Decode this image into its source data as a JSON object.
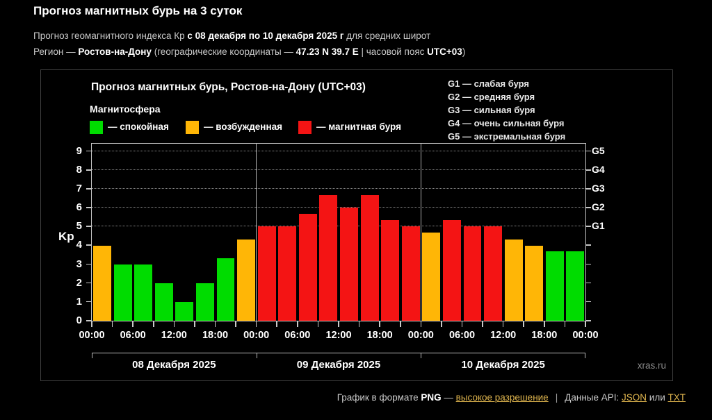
{
  "header": {
    "title": "Прогноз магнитных бурь на 3 суток",
    "line2": {
      "pre": "Прогноз геомагнитного индекса Кр ",
      "bold": "с 08 декабря по 10 декабря 2025 г",
      "post": " для средних широт"
    },
    "line3": {
      "pre": "Регион — ",
      "region": "Ростов-на-Дону",
      "mid": " (географические координаты — ",
      "coords": "47.23 N 39.7 E",
      "tz_pre": " | часовой пояс ",
      "tz": "UTC+03",
      "post": ")"
    }
  },
  "panel": {
    "chart_title": "Прогноз магнитных бурь, Ростов-на-Дону (UTC+03)",
    "legend_title": "Магнитосфера",
    "watermark": "xras.ru"
  },
  "chart_data": {
    "type": "bar",
    "title": "Прогноз магнитных бурь, Ростов-на-Дону (UTC+03)",
    "ylabel": "Kp",
    "ylim": [
      0,
      9.4
    ],
    "yticks": [
      0,
      1,
      2,
      3,
      4,
      5,
      6,
      7,
      8,
      9
    ],
    "gridlines_kp": [
      5,
      6,
      7,
      8,
      9
    ],
    "grid": "dotted",
    "legend_position": "top",
    "right_axis_labels": [
      {
        "label": "G1",
        "kp": 5
      },
      {
        "label": "G2",
        "kp": 6
      },
      {
        "label": "G3",
        "kp": 7
      },
      {
        "label": "G4",
        "kp": 8
      },
      {
        "label": "G5",
        "kp": 9
      }
    ],
    "g_scale_legend": [
      "G1 — слабая буря",
      "G2 — средняя буря",
      "G3 — сильная буря",
      "G4 — очень сильная буря",
      "G5 — экстремальная буря"
    ],
    "legend": [
      {
        "key": "quiet",
        "label": "— спокойная"
      },
      {
        "key": "excited",
        "label": "— возбужденная"
      },
      {
        "key": "storm",
        "label": "— магнитная буря"
      }
    ],
    "bar_colors": {
      "quiet": "#00dc00",
      "excited": "#ffb606",
      "storm": "#f41414"
    },
    "x_hour_labels": [
      "00:00",
      "06:00",
      "12:00",
      "18:00",
      "00:00",
      "06:00",
      "12:00",
      "18:00",
      "00:00",
      "06:00",
      "12:00",
      "18:00",
      "00:00"
    ],
    "days": [
      {
        "date": "08 Декабря 2025",
        "values": [
          4,
          3,
          3,
          2,
          1,
          2,
          3.33,
          4.33
        ],
        "levels": [
          "excited",
          "quiet",
          "quiet",
          "quiet",
          "quiet",
          "quiet",
          "quiet",
          "excited"
        ]
      },
      {
        "date": "09 Декабря 2025",
        "values": [
          5,
          5,
          5.67,
          6.67,
          6,
          6.67,
          5.33,
          5
        ],
        "levels": [
          "storm",
          "storm",
          "storm",
          "storm",
          "storm",
          "storm",
          "storm",
          "storm"
        ]
      },
      {
        "date": "10 Декабря 2025",
        "values": [
          4.67,
          5.33,
          5,
          5,
          4.33,
          4,
          3.67,
          3.67
        ],
        "levels": [
          "excited",
          "storm",
          "storm",
          "storm",
          "excited",
          "excited",
          "quiet",
          "quiet"
        ]
      }
    ]
  },
  "footer": {
    "pre": "График в формате ",
    "png": "PNG",
    "dash": " — ",
    "hires_link": "высокое разрешение",
    "sep": "|",
    "api_pre": "Данные API: ",
    "json_link": "JSON",
    "or": " или ",
    "txt_link": "TXT"
  }
}
